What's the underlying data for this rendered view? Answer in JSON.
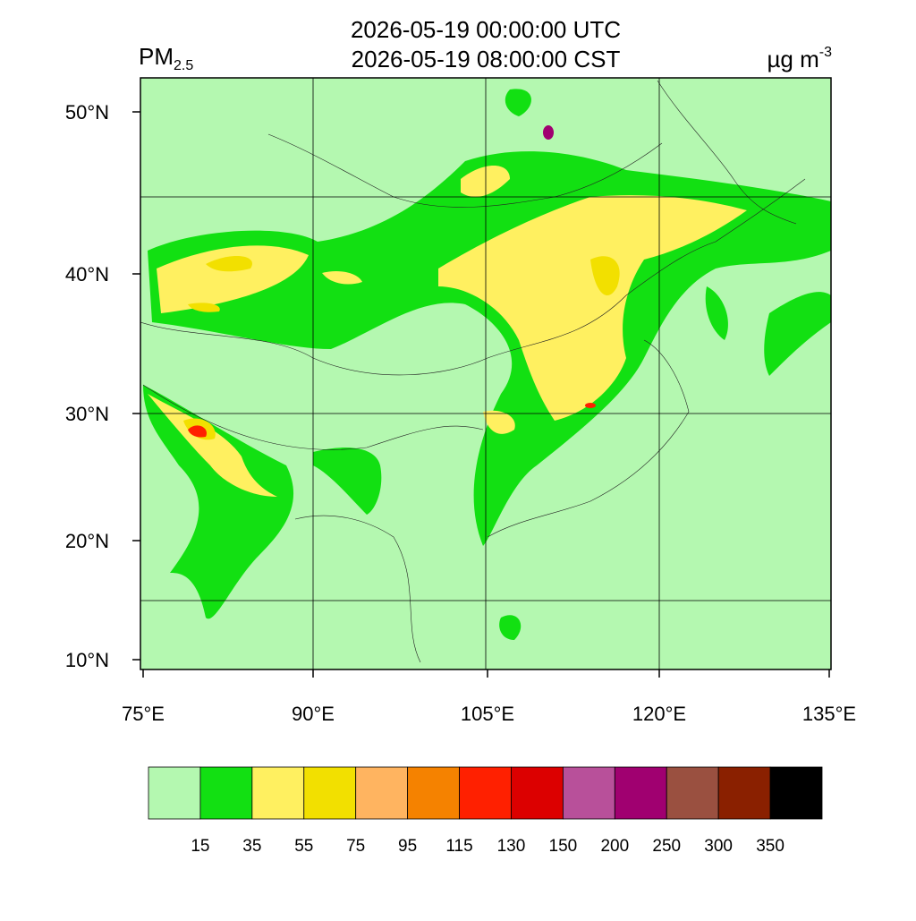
{
  "title": {
    "line1": "2026-05-19 00:00:00 UTC",
    "line2": "2026-05-19 08:00:00 CST"
  },
  "variable": {
    "main": "PM",
    "sub": "2.5"
  },
  "unit": {
    "main": "µg m",
    "sup": "-3"
  },
  "lat_labels": [
    "50°N",
    "40°N",
    "30°N",
    "20°N",
    "10°N"
  ],
  "lon_labels": [
    "75°E",
    "90°E",
    "105°E",
    "120°E",
    "135°E"
  ],
  "colorbar": {
    "colors": [
      "#b4f8b0",
      "#12e012",
      "#fff060",
      "#f2e000",
      "#ffb460",
      "#f58200",
      "#ff2000",
      "#dc0000",
      "#b8509a",
      "#a00070",
      "#9a5040",
      "#8a2000",
      "#000000"
    ],
    "labels": [
      "15",
      "35",
      "55",
      "75",
      "95",
      "115",
      "130",
      "150",
      "200",
      "250",
      "300",
      "350"
    ]
  }
}
